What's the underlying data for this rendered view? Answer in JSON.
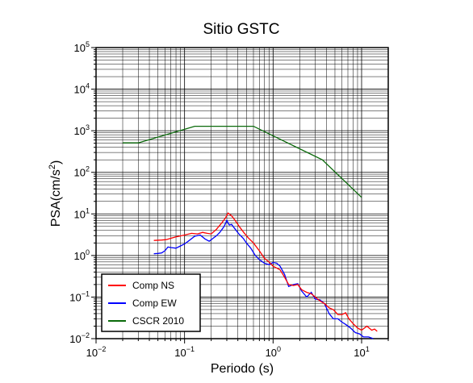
{
  "chart_data": {
    "type": "line",
    "title": "Sitio GSTC",
    "xlabel": "Periodo (s)",
    "ylabel": "PSA(cm/s²)",
    "xscale": "log",
    "yscale": "log",
    "xlim": [
      0.01,
      20
    ],
    "ylim": [
      0.01,
      100000
    ],
    "grid": true,
    "legend_position": "bottom-left",
    "x_ticks": [
      {
        "base": "10",
        "exp": "−2"
      },
      {
        "base": "10",
        "exp": "−1"
      },
      {
        "base": "10",
        "exp": "0"
      },
      {
        "base": "10",
        "exp": "1"
      }
    ],
    "y_ticks": [
      {
        "base": "10",
        "exp": "−2"
      },
      {
        "base": "10",
        "exp": "−1"
      },
      {
        "base": "10",
        "exp": "0"
      },
      {
        "base": "10",
        "exp": "1"
      },
      {
        "base": "10",
        "exp": "2"
      },
      {
        "base": "10",
        "exp": "3"
      },
      {
        "base": "10",
        "exp": "4"
      },
      {
        "base": "10",
        "exp": "5"
      }
    ],
    "series": [
      {
        "name": "Comp NS",
        "color": "#ff0000",
        "points": [
          [
            0.045,
            2.3
          ],
          [
            0.055,
            2.35
          ],
          [
            0.062,
            2.4
          ],
          [
            0.07,
            2.6
          ],
          [
            0.08,
            2.8
          ],
          [
            0.1,
            3.1
          ],
          [
            0.12,
            3.4
          ],
          [
            0.14,
            3.3
          ],
          [
            0.16,
            3.6
          ],
          [
            0.18,
            3.4
          ],
          [
            0.2,
            3.3
          ],
          [
            0.23,
            4.3
          ],
          [
            0.26,
            5.9
          ],
          [
            0.29,
            8.0
          ],
          [
            0.31,
            10.5
          ],
          [
            0.34,
            9.0
          ],
          [
            0.38,
            6.6
          ],
          [
            0.42,
            4.8
          ],
          [
            0.47,
            3.5
          ],
          [
            0.52,
            2.7
          ],
          [
            0.6,
            2.0
          ],
          [
            0.7,
            1.3
          ],
          [
            0.8,
            0.85
          ],
          [
            0.9,
            0.7
          ],
          [
            1.0,
            0.55
          ],
          [
            1.1,
            0.5
          ],
          [
            1.2,
            0.45
          ],
          [
            1.35,
            0.3
          ],
          [
            1.5,
            0.2
          ],
          [
            1.7,
            0.19
          ],
          [
            1.9,
            0.2
          ],
          [
            2.1,
            0.15
          ],
          [
            2.4,
            0.13
          ],
          [
            2.7,
            0.12
          ],
          [
            3.0,
            0.1
          ],
          [
            3.4,
            0.08
          ],
          [
            3.8,
            0.07
          ],
          [
            4.3,
            0.055
          ],
          [
            4.8,
            0.05
          ],
          [
            5.4,
            0.038
          ],
          [
            6.0,
            0.038
          ],
          [
            6.6,
            0.042
          ],
          [
            7.2,
            0.03
          ],
          [
            8.0,
            0.023
          ],
          [
            9.0,
            0.018
          ],
          [
            10.0,
            0.016
          ],
          [
            11.5,
            0.02
          ],
          [
            13.0,
            0.016
          ],
          [
            14.0,
            0.017
          ],
          [
            15.0,
            0.015
          ]
        ]
      },
      {
        "name": "Comp EW",
        "color": "#0000ff",
        "points": [
          [
            0.045,
            1.1
          ],
          [
            0.05,
            1.12
          ],
          [
            0.055,
            1.15
          ],
          [
            0.06,
            1.3
          ],
          [
            0.065,
            1.6
          ],
          [
            0.07,
            1.55
          ],
          [
            0.08,
            1.5
          ],
          [
            0.09,
            1.7
          ],
          [
            0.1,
            1.9
          ],
          [
            0.11,
            2.2
          ],
          [
            0.13,
            2.9
          ],
          [
            0.15,
            3.1
          ],
          [
            0.17,
            2.5
          ],
          [
            0.19,
            2.2
          ],
          [
            0.21,
            2.6
          ],
          [
            0.23,
            3.0
          ],
          [
            0.25,
            3.6
          ],
          [
            0.28,
            5.0
          ],
          [
            0.3,
            7.0
          ],
          [
            0.32,
            5.4
          ],
          [
            0.34,
            5.6
          ],
          [
            0.37,
            4.4
          ],
          [
            0.41,
            3.3
          ],
          [
            0.46,
            2.6
          ],
          [
            0.5,
            2.0
          ],
          [
            0.56,
            1.5
          ],
          [
            0.63,
            1.0
          ],
          [
            0.7,
            0.8
          ],
          [
            0.8,
            0.65
          ],
          [
            0.9,
            0.6
          ],
          [
            1.0,
            0.68
          ],
          [
            1.1,
            0.65
          ],
          [
            1.2,
            0.55
          ],
          [
            1.35,
            0.35
          ],
          [
            1.5,
            0.18
          ],
          [
            1.7,
            0.2
          ],
          [
            1.9,
            0.21
          ],
          [
            2.1,
            0.14
          ],
          [
            2.4,
            0.1
          ],
          [
            2.7,
            0.13
          ],
          [
            3.0,
            0.09
          ],
          [
            3.4,
            0.085
          ],
          [
            3.8,
            0.07
          ],
          [
            4.3,
            0.04
          ],
          [
            4.8,
            0.03
          ],
          [
            5.4,
            0.03
          ],
          [
            6.0,
            0.025
          ],
          [
            6.6,
            0.022
          ],
          [
            7.5,
            0.018
          ],
          [
            8.5,
            0.014
          ],
          [
            9.5,
            0.013
          ],
          [
            10.5,
            0.011
          ],
          [
            12.0,
            0.011
          ],
          [
            13.5,
            0.01
          ]
        ]
      },
      {
        "name": "CSCR 2010",
        "color": "#0a6a0a",
        "points": [
          [
            0.02,
            510
          ],
          [
            0.03,
            510
          ],
          [
            0.13,
            1280
          ],
          [
            0.6,
            1280
          ],
          [
            3.6,
            200
          ],
          [
            10.0,
            25
          ]
        ]
      }
    ]
  }
}
